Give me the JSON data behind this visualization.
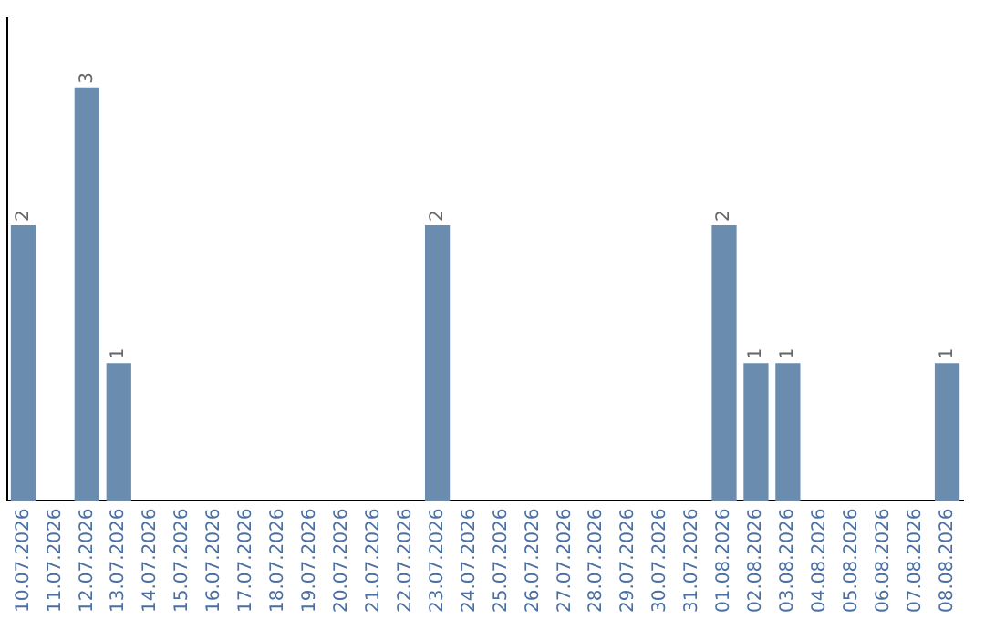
{
  "chart_data": {
    "type": "bar",
    "categories": [
      "10.07.2026",
      "11.07.2026",
      "12.07.2026",
      "13.07.2026",
      "14.07.2026",
      "15.07.2026",
      "16.07.2026",
      "17.07.2026",
      "18.07.2026",
      "19.07.2026",
      "20.07.2026",
      "21.07.2026",
      "22.07.2026",
      "23.07.2026",
      "24.07.2026",
      "25.07.2026",
      "26.07.2026",
      "27.07.2026",
      "28.07.2026",
      "29.07.2026",
      "30.07.2026",
      "31.07.2026",
      "01.08.2026",
      "02.08.2026",
      "03.08.2026",
      "04.08.2026",
      "05.08.2026",
      "06.08.2026",
      "07.08.2026",
      "08.08.2026"
    ],
    "values": [
      2,
      0,
      3,
      1,
      0,
      0,
      0,
      0,
      0,
      0,
      0,
      0,
      0,
      2,
      0,
      0,
      0,
      0,
      0,
      0,
      0,
      0,
      2,
      1,
      1,
      0,
      0,
      0,
      0,
      1
    ],
    "value_labels": [
      "2",
      null,
      "3",
      "1",
      null,
      null,
      null,
      null,
      null,
      null,
      null,
      null,
      null,
      "2",
      null,
      null,
      null,
      null,
      null,
      null,
      null,
      null,
      "2",
      "1",
      "1",
      null,
      null,
      null,
      null,
      "1"
    ],
    "color": "#6a8caf",
    "tick_labels": "x",
    "grid": false,
    "legend": false
  }
}
